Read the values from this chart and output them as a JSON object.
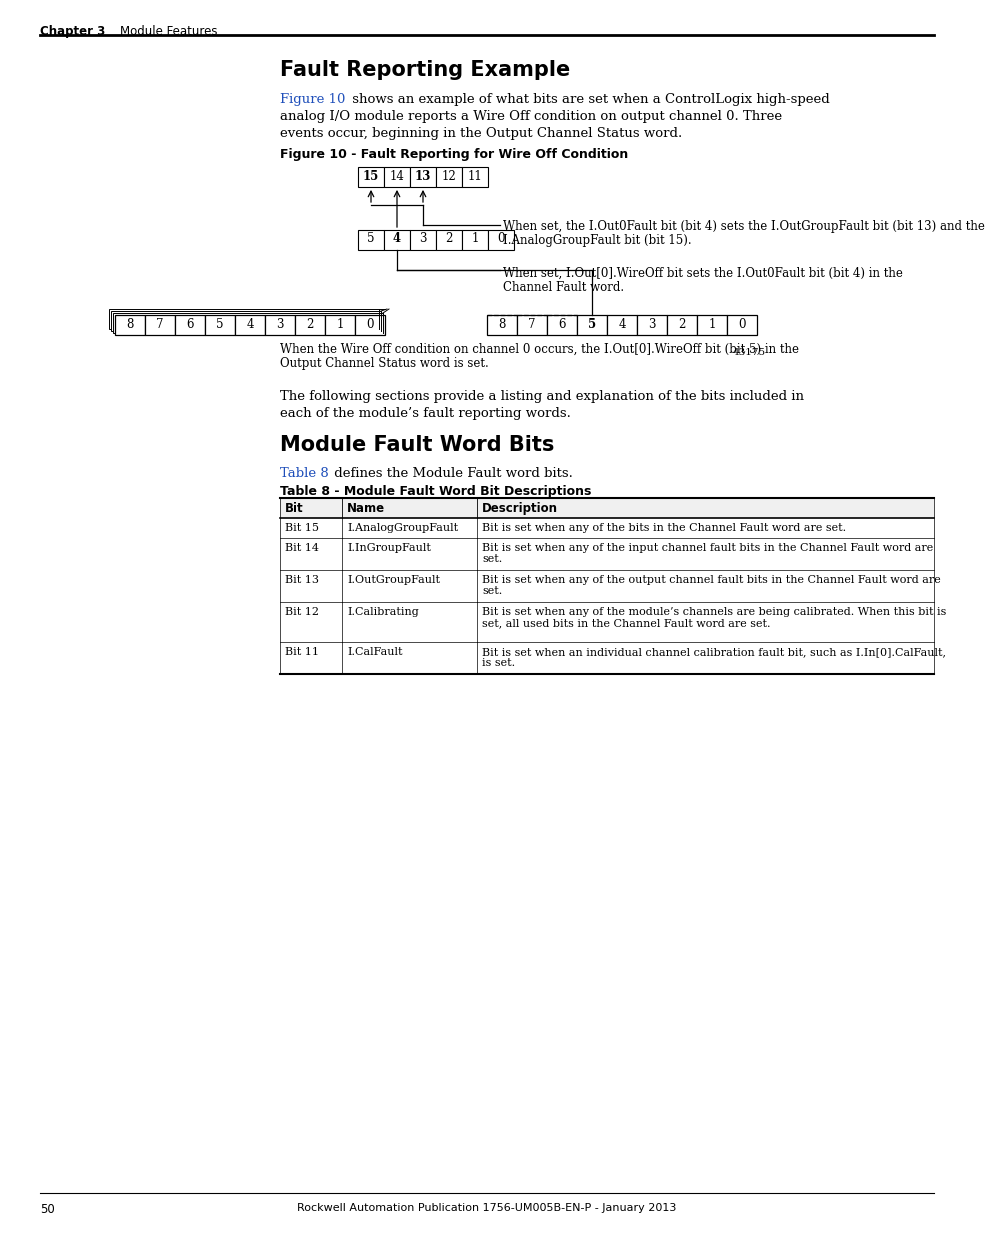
{
  "page_title": "Fault Reporting Example",
  "section2_title": "Module Fault Word Bits",
  "figure_caption": "Figure 10 - Fault Reporting for Wire Off Condition",
  "annotation1": "43175",
  "top_row_bits": [
    "15",
    "14",
    "13",
    "12",
    "11"
  ],
  "top_row_bold": [
    true,
    false,
    true,
    false,
    false
  ],
  "mid_row_bits": [
    "5",
    "4",
    "3",
    "2",
    "1",
    "0"
  ],
  "mid_row_bold": [
    false,
    true,
    false,
    false,
    false,
    false
  ],
  "bottom_left_bits": [
    "8",
    "7",
    "6",
    "5",
    "4",
    "3",
    "2",
    "1",
    "0"
  ],
  "bottom_right_bits": [
    "8",
    "7",
    "6",
    "5",
    "4",
    "3",
    "2",
    "1",
    "0"
  ],
  "bottom_right_bold": [
    false,
    false,
    false,
    true,
    false,
    false,
    false,
    false,
    false
  ],
  "arrow1_text_line1": "When set, the I.Out0Fault bit (bit 4) sets the I.OutGroupFault bit (bit 13) and the",
  "arrow1_text_line2": "I.AnalogGroupFault bit (bit 15).",
  "arrow2_text_line1": "When set, I.Out[0].WireOff bit sets the I.Out0Fault bit (bit 4) in the",
  "arrow2_text_line2": "Channel Fault word.",
  "bottom_text_line1": "When the Wire Off condition on channel 0 occurs, the I.Out[0].WireOff bit (bit 5) in the",
  "bottom_text_line2": "Output Channel Status word is set.",
  "table_headers": [
    "Bit",
    "Name",
    "Description"
  ],
  "table_rows": [
    [
      "Bit 15",
      "I.AnalogGroupFault",
      "Bit is set when any of the bits in the Channel Fault word are set.",
      ""
    ],
    [
      "Bit 14",
      "I.InGroupFault",
      "Bit is set when any of the input channel fault bits in the Channel Fault word are",
      "set."
    ],
    [
      "Bit 13",
      "I.OutGroupFault",
      "Bit is set when any of the output channel fault bits in the Channel Fault word are",
      "set."
    ],
    [
      "Bit 12",
      "I.Calibrating",
      "Bit is set when any of the module’s channels are being calibrated. When this bit is",
      "set, all used bits in the Channel Fault word are set."
    ],
    [
      "Bit 11",
      "I.CalFault",
      "Bit is set when an individual channel calibration fault bit, such as I.In[0].CalFault,",
      "is set."
    ]
  ],
  "footer_text": "Rockwell Automation Publication 1756-UM005B-EN-P - January 2013",
  "page_number": "50",
  "background_color": "#ffffff",
  "text_color": "#000000",
  "link_color": "#1f4fba",
  "box_color": "#000000"
}
